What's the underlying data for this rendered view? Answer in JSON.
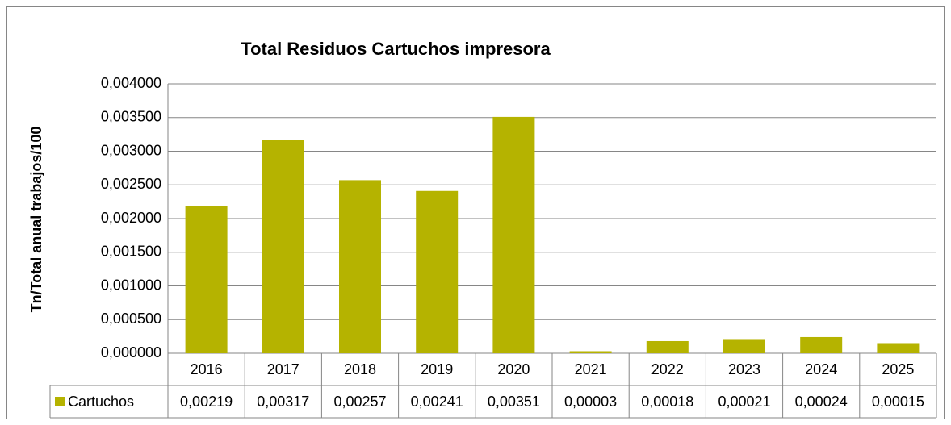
{
  "chart_data": {
    "type": "bar",
    "title": "Total Residuos Cartuchos impresora",
    "y_label": "Tn/Total anual trabajos/100",
    "categories": [
      "2016",
      "2017",
      "2018",
      "2019",
      "2020",
      "2021",
      "2022",
      "2023",
      "2024",
      "2025"
    ],
    "series": [
      {
        "name": "Cartuchos",
        "color": "#b5b300",
        "values": [
          0.00219,
          0.00317,
          0.00257,
          0.00241,
          0.00351,
          3e-05,
          0.00018,
          0.00021,
          0.00024,
          0.00015
        ],
        "value_labels": [
          "0,00219",
          "0,00317",
          "0,00257",
          "0,00241",
          "0,00351",
          "0,00003",
          "0,00018",
          "0,00021",
          "0,00024",
          "0,00015"
        ]
      }
    ],
    "ylim": [
      0,
      0.004
    ],
    "yticks": [
      {
        "value": 0,
        "label": "0,000000"
      },
      {
        "value": 0.0005,
        "label": "0,000500"
      },
      {
        "value": 0.001,
        "label": "0,001000"
      },
      {
        "value": 0.0015,
        "label": "0,001500"
      },
      {
        "value": 0.002,
        "label": "0,002000"
      },
      {
        "value": 0.0025,
        "label": "0,002500"
      },
      {
        "value": 0.003,
        "label": "0,003000"
      },
      {
        "value": 0.0035,
        "label": "0,003500"
      },
      {
        "value": 0.004,
        "label": "0,004000"
      }
    ],
    "grid": true
  }
}
